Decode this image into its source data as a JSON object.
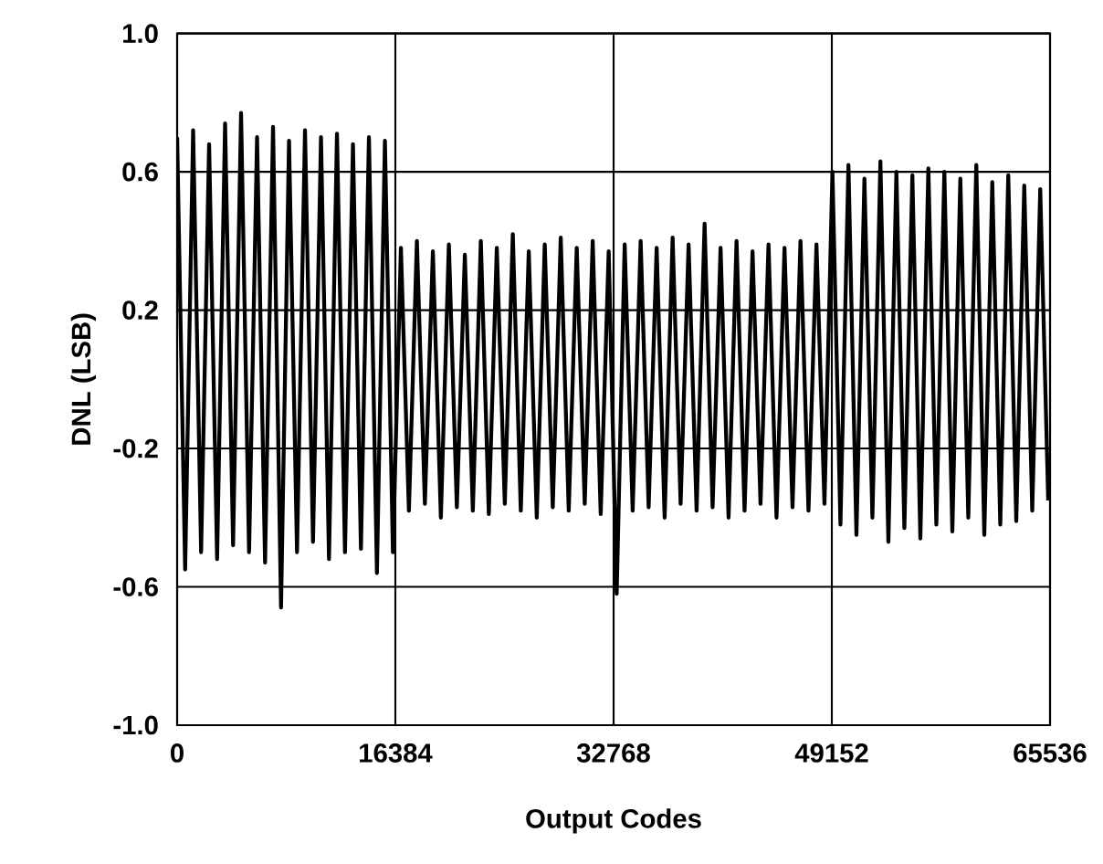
{
  "chart_data": {
    "type": "line",
    "xlabel": "Output Codes",
    "ylabel": "DNL (LSB)",
    "xlim": [
      0,
      65536
    ],
    "xticks": [
      0,
      16384,
      32768,
      49152,
      65536
    ],
    "ylim": [
      -1,
      1
    ],
    "yticks": [
      {
        "value": -1,
        "label": "-1.0"
      },
      -0.6,
      -0.2,
      0.2,
      0.6,
      {
        "value": 1,
        "label": "1.0"
      }
    ],
    "grid": true,
    "series": [
      {
        "color": "#000000",
        "x": [
          0,
          600,
          1200,
          1800,
          2400,
          3000,
          3600,
          4200,
          4800,
          5400,
          6000,
          6600,
          7200,
          7800,
          8400,
          9000,
          9600,
          10200,
          10800,
          11400,
          12000,
          12600,
          13200,
          13800,
          14400,
          15000,
          15600,
          16200,
          16800,
          17400,
          18000,
          18600,
          19200,
          19800,
          20400,
          21000,
          21600,
          22200,
          22800,
          23400,
          24000,
          24600,
          25200,
          25800,
          26400,
          27000,
          27600,
          28200,
          28800,
          29400,
          30000,
          30600,
          31200,
          31800,
          32400,
          33000,
          33600,
          34200,
          34800,
          35400,
          36000,
          36600,
          37200,
          37800,
          38400,
          39000,
          39600,
          40200,
          40800,
          41400,
          42000,
          42600,
          43200,
          43800,
          44400,
          45000,
          45600,
          46200,
          46800,
          47400,
          48000,
          48600,
          49200,
          49800,
          50400,
          51000,
          51600,
          52200,
          52800,
          53400,
          54000,
          54600,
          55200,
          55800,
          56400,
          57000,
          57600,
          58200,
          58800,
          59400,
          60000,
          60600,
          61200,
          61800,
          62400,
          63000,
          63600,
          64200,
          64800,
          65400
        ],
        "values": [
          0.7,
          -0.55,
          0.72,
          -0.5,
          0.68,
          -0.52,
          0.74,
          -0.48,
          0.77,
          -0.5,
          0.7,
          -0.53,
          0.73,
          -0.66,
          0.69,
          -0.5,
          0.72,
          -0.47,
          0.7,
          -0.52,
          0.71,
          -0.5,
          0.68,
          -0.49,
          0.7,
          -0.56,
          0.69,
          -0.5,
          0.38,
          -0.38,
          0.4,
          -0.36,
          0.37,
          -0.4,
          0.39,
          -0.37,
          0.36,
          -0.38,
          0.4,
          -0.39,
          0.38,
          -0.36,
          0.42,
          -0.38,
          0.37,
          -0.4,
          0.39,
          -0.37,
          0.41,
          -0.38,
          0.38,
          -0.36,
          0.4,
          -0.39,
          0.37,
          -0.62,
          0.39,
          -0.38,
          0.4,
          -0.37,
          0.38,
          -0.4,
          0.41,
          -0.36,
          0.39,
          -0.38,
          0.45,
          -0.37,
          0.38,
          -0.4,
          0.4,
          -0.38,
          0.37,
          -0.36,
          0.39,
          -0.4,
          0.38,
          -0.37,
          0.4,
          -0.38,
          0.39,
          -0.36,
          0.6,
          -0.42,
          0.62,
          -0.45,
          0.58,
          -0.4,
          0.63,
          -0.47,
          0.6,
          -0.43,
          0.59,
          -0.46,
          0.61,
          -0.42,
          0.6,
          -0.44,
          0.58,
          -0.4,
          0.62,
          -0.45,
          0.57,
          -0.42,
          0.59,
          -0.41,
          0.56,
          -0.38,
          0.55,
          -0.35
        ]
      }
    ]
  }
}
